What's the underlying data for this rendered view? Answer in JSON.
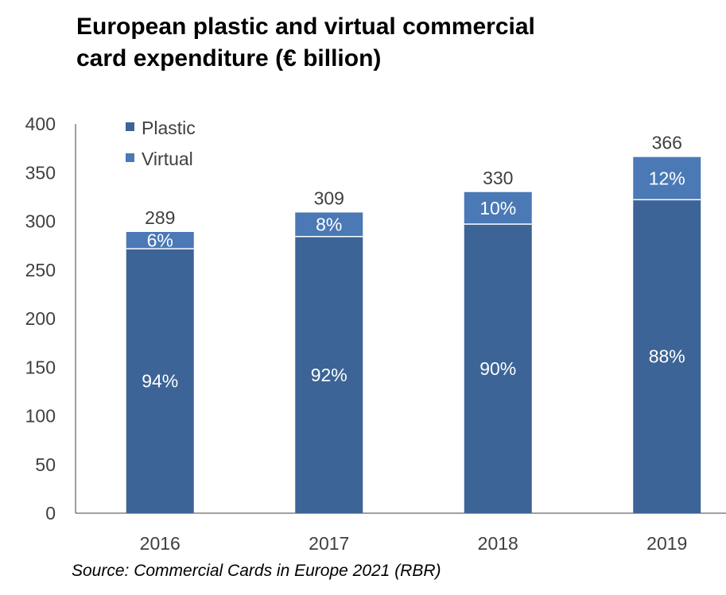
{
  "title_line1": "European plastic and virtual commercial",
  "title_line2": "card expenditure (€ billion)",
  "source": "Source: Commercial Cards in Europe 2021 (RBR)",
  "colors": {
    "plastic": "#3c6496",
    "virtual": "#4a79b5",
    "axis": "#404040",
    "text": "#404040"
  },
  "chart_data": {
    "type": "bar",
    "stacked": true,
    "title": "European plastic and virtual commercial card expenditure (€ billion)",
    "xlabel": "",
    "ylabel": "",
    "ylim": [
      0,
      400
    ],
    "yticks": [
      0,
      50,
      100,
      150,
      200,
      250,
      300,
      350,
      400
    ],
    "grid": false,
    "legend_position": "top-left",
    "categories": [
      "2016",
      "2017",
      "2018",
      "2019"
    ],
    "totals": [
      289,
      309,
      330,
      366
    ],
    "total_labels": [
      "289",
      "309",
      "330",
      "366"
    ],
    "series": [
      {
        "name": "Plastic",
        "values": [
          271.7,
          284.3,
          297,
          322.1
        ],
        "labels": [
          "94%",
          "92%",
          "90%",
          "88%"
        ]
      },
      {
        "name": "Virtual",
        "values": [
          17.3,
          24.7,
          33,
          43.9
        ],
        "labels": [
          "6%",
          "8%",
          "10%",
          "12%"
        ]
      }
    ]
  }
}
